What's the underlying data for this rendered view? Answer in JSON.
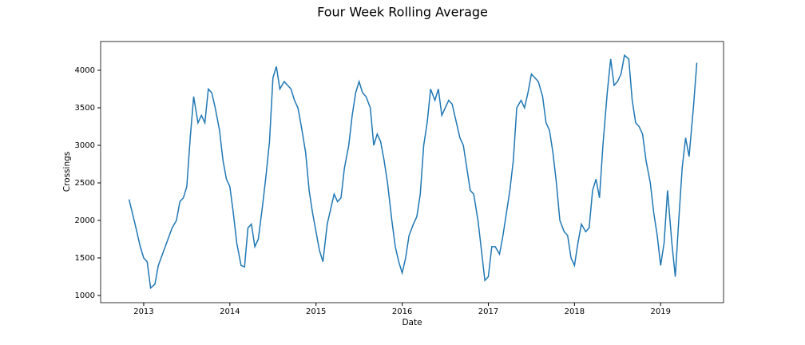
{
  "chart_data": {
    "type": "line",
    "title": "Four Week Rolling Average",
    "x_label": "Date",
    "y_label": "Crossings",
    "x": [
      2012.83,
      2012.9,
      2012.96,
      2013.0,
      2013.04,
      2013.08,
      2013.13,
      2013.17,
      2013.25,
      2013.33,
      2013.38,
      2013.42,
      2013.46,
      2013.5,
      2013.54,
      2013.58,
      2013.63,
      2013.67,
      2013.71,
      2013.75,
      2013.79,
      2013.83,
      2013.88,
      2013.92,
      2013.96,
      2014.0,
      2014.04,
      2014.08,
      2014.13,
      2014.17,
      2014.21,
      2014.25,
      2014.29,
      2014.33,
      2014.38,
      2014.42,
      2014.46,
      2014.5,
      2014.54,
      2014.58,
      2014.63,
      2014.67,
      2014.71,
      2014.75,
      2014.79,
      2014.83,
      2014.88,
      2014.92,
      2014.96,
      2015.0,
      2015.04,
      2015.08,
      2015.13,
      2015.17,
      2015.21,
      2015.25,
      2015.29,
      2015.33,
      2015.38,
      2015.42,
      2015.46,
      2015.5,
      2015.54,
      2015.58,
      2015.63,
      2015.67,
      2015.71,
      2015.75,
      2015.79,
      2015.83,
      2015.88,
      2015.92,
      2015.96,
      2016.0,
      2016.04,
      2016.08,
      2016.13,
      2016.17,
      2016.21,
      2016.25,
      2016.29,
      2016.33,
      2016.38,
      2016.42,
      2016.46,
      2016.5,
      2016.54,
      2016.58,
      2016.63,
      2016.67,
      2016.71,
      2016.75,
      2016.79,
      2016.83,
      2016.88,
      2016.92,
      2016.96,
      2017.0,
      2017.04,
      2017.08,
      2017.13,
      2017.17,
      2017.21,
      2017.25,
      2017.29,
      2017.33,
      2017.38,
      2017.42,
      2017.46,
      2017.5,
      2017.54,
      2017.58,
      2017.63,
      2017.67,
      2017.71,
      2017.75,
      2017.79,
      2017.83,
      2017.88,
      2017.92,
      2017.96,
      2018.0,
      2018.04,
      2018.08,
      2018.13,
      2018.17,
      2018.21,
      2018.25,
      2018.29,
      2018.33,
      2018.38,
      2018.42,
      2018.46,
      2018.5,
      2018.54,
      2018.58,
      2018.63,
      2018.67,
      2018.71,
      2018.75,
      2018.79,
      2018.83,
      2018.88,
      2018.92,
      2018.96,
      2019.0,
      2019.04,
      2019.08,
      2019.13,
      2019.17,
      2019.21,
      2019.25,
      2019.29,
      2019.33,
      2019.38,
      2019.42
    ],
    "series": [
      {
        "name": "Crossings",
        "color": "#1f77b4",
        "values": [
          2280,
          1950,
          1650,
          1500,
          1450,
          1100,
          1150,
          1400,
          1650,
          1900,
          2000,
          2250,
          2300,
          2450,
          3100,
          3650,
          3300,
          3400,
          3300,
          3750,
          3700,
          3500,
          3200,
          2800,
          2550,
          2450,
          2100,
          1700,
          1400,
          1380,
          1900,
          1950,
          1650,
          1750,
          2200,
          2600,
          3050,
          3900,
          4050,
          3750,
          3850,
          3800,
          3750,
          3600,
          3500,
          3250,
          2900,
          2400,
          2100,
          1850,
          1600,
          1450,
          1950,
          2150,
          2350,
          2250,
          2300,
          2700,
          3000,
          3400,
          3700,
          3850,
          3700,
          3650,
          3500,
          3000,
          3150,
          3050,
          2800,
          2500,
          2000,
          1650,
          1450,
          1300,
          1500,
          1800,
          1950,
          2050,
          2350,
          3000,
          3300,
          3750,
          3600,
          3750,
          3400,
          3500,
          3600,
          3550,
          3300,
          3100,
          3000,
          2700,
          2400,
          2350,
          2000,
          1600,
          1200,
          1250,
          1650,
          1650,
          1550,
          1800,
          2100,
          2400,
          2800,
          3500,
          3600,
          3500,
          3700,
          3950,
          3900,
          3850,
          3650,
          3300,
          3200,
          2900,
          2500,
          2000,
          1850,
          1800,
          1500,
          1400,
          1700,
          1950,
          1850,
          1900,
          2400,
          2550,
          2300,
          3000,
          3700,
          4150,
          3800,
          3850,
          3950,
          4200,
          4150,
          3600,
          3300,
          3250,
          3150,
          2800,
          2500,
          2100,
          1800,
          1400,
          1700,
          2400,
          1700,
          1250,
          2000,
          2700,
          3100,
          2850,
          3500,
          4100
        ]
      }
    ],
    "xlim": [
      2012.5,
      2019.73
    ],
    "xticks": [
      2013,
      2014,
      2015,
      2016,
      2017,
      2018,
      2019
    ],
    "ylim": [
      904,
      4383
    ],
    "yticks": [
      1000,
      1500,
      2000,
      2500,
      3000,
      3500,
      4000
    ],
    "grid": false
  }
}
